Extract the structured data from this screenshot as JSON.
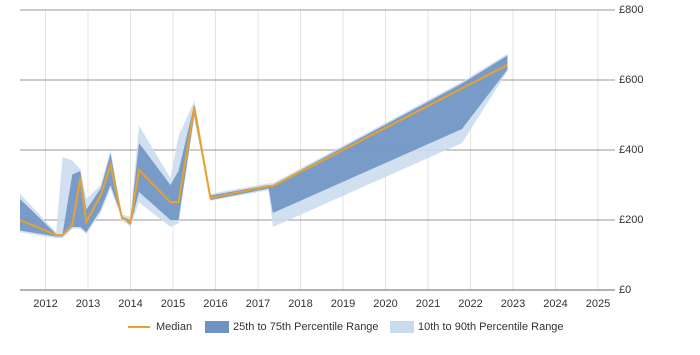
{
  "chart_data": {
    "type": "band-line",
    "x": [
      2011.4,
      2012.25,
      2012.4,
      2012.63,
      2012.82,
      2012.96,
      2013.3,
      2013.53,
      2013.8,
      2014.0,
      2014.2,
      2014.94,
      2015.13,
      2015.5,
      2015.88,
      2017.25,
      2017.35,
      2021.8,
      2022.87
    ],
    "series": [
      {
        "name": "10th to 90th Percentile Range",
        "color": "#c9dbef",
        "low": [
          165,
          148,
          148,
          175,
          175,
          160,
          220,
          290,
          200,
          180,
          250,
          180,
          190,
          490,
          255,
          285,
          180,
          420,
          625
        ],
        "high": [
          275,
          165,
          380,
          370,
          345,
          260,
          300,
          400,
          215,
          210,
          470,
          320,
          440,
          540,
          275,
          305,
          305,
          595,
          675
        ]
      },
      {
        "name": "25th to 75th Percentile Range",
        "color": "#6f93c2",
        "low": [
          170,
          153,
          153,
          180,
          180,
          165,
          230,
          300,
          206,
          186,
          280,
          200,
          200,
          500,
          257,
          290,
          220,
          460,
          630
        ],
        "high": [
          260,
          160,
          160,
          330,
          340,
          230,
          290,
          390,
          210,
          200,
          420,
          300,
          340,
          530,
          270,
          300,
          300,
          590,
          670
        ]
      },
      {
        "name": "Median",
        "color": "#e8a22c",
        "values": [
          200,
          157,
          157,
          186,
          320,
          194,
          271,
          357,
          206,
          194,
          343,
          251,
          251,
          523,
          263,
          297,
          297,
          576,
          643
        ]
      }
    ],
    "xlim": [
      2011.4,
      2025.4
    ],
    "xticks": [
      2012,
      2013,
      2014,
      2015,
      2016,
      2017,
      2018,
      2019,
      2020,
      2021,
      2022,
      2023,
      2024,
      2025
    ],
    "ylim": [
      0,
      800
    ],
    "yticks": [
      {
        "value": 0,
        "label": "£0"
      },
      {
        "value": 200,
        "label": "£200"
      },
      {
        "value": 400,
        "label": "£400"
      },
      {
        "value": 600,
        "label": "£600"
      },
      {
        "value": 800,
        "label": "£800"
      }
    ],
    "grid": true
  }
}
